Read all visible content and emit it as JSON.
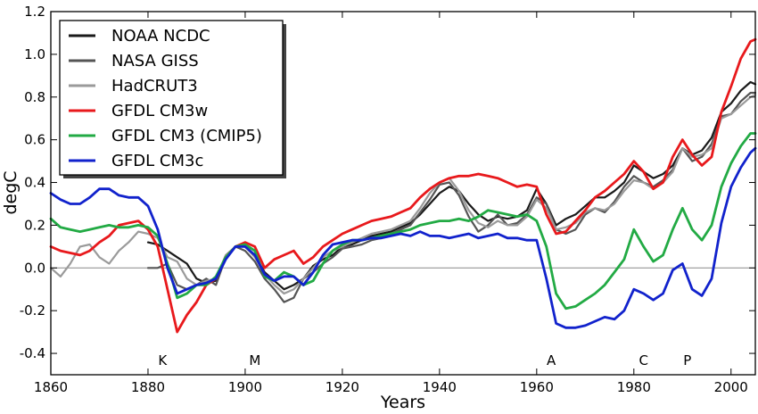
{
  "chart_data": {
    "type": "line",
    "title": "",
    "xlabel": "Years",
    "ylabel": "degC",
    "xlim": [
      1860,
      2005
    ],
    "ylim": [
      -0.5,
      1.2
    ],
    "xticks": [
      1860,
      1880,
      1900,
      1920,
      1940,
      1960,
      1980,
      2000
    ],
    "yticks": [
      -0.4,
      -0.2,
      0.0,
      0.2,
      0.4,
      0.6,
      0.8,
      1.0,
      1.2
    ],
    "ytick_labels": [
      "-0.4",
      "-0.2",
      "0.0",
      "0.2",
      "0.4",
      "0.6",
      "0.8",
      "1.0",
      "1.2"
    ],
    "grid": false,
    "zero_line": true,
    "legend_position": "top-left",
    "event_labels": [
      {
        "text": "K",
        "x": 1883
      },
      {
        "text": "M",
        "x": 1902
      },
      {
        "text": "A",
        "x": 1963
      },
      {
        "text": "C",
        "x": 1982
      },
      {
        "text": "P",
        "x": 1991
      }
    ],
    "series": [
      {
        "name": "NOAA NCDC",
        "color": "#1a1a1a",
        "x": [
          1880,
          1882,
          1884,
          1886,
          1888,
          1890,
          1892,
          1894,
          1896,
          1898,
          1900,
          1902,
          1904,
          1906,
          1908,
          1910,
          1912,
          1914,
          1916,
          1918,
          1920,
          1922,
          1924,
          1926,
          1928,
          1930,
          1932,
          1934,
          1936,
          1938,
          1940,
          1942,
          1944,
          1946,
          1948,
          1950,
          1952,
          1954,
          1956,
          1958,
          1960,
          1962,
          1964,
          1966,
          1968,
          1970,
          1972,
          1974,
          1976,
          1978,
          1980,
          1982,
          1984,
          1986,
          1988,
          1990,
          1992,
          1994,
          1996,
          1998,
          2000,
          2002,
          2004,
          2005
        ],
        "y": [
          0.12,
          0.11,
          0.08,
          0.05,
          0.02,
          -0.05,
          -0.07,
          -0.06,
          0.04,
          0.1,
          0.1,
          0.06,
          -0.02,
          -0.06,
          -0.1,
          -0.08,
          -0.05,
          0.01,
          0.04,
          0.06,
          0.1,
          0.11,
          0.13,
          0.15,
          0.16,
          0.17,
          0.19,
          0.21,
          0.25,
          0.3,
          0.35,
          0.38,
          0.36,
          0.3,
          0.25,
          0.22,
          0.24,
          0.23,
          0.24,
          0.27,
          0.37,
          0.3,
          0.2,
          0.23,
          0.25,
          0.29,
          0.33,
          0.33,
          0.36,
          0.4,
          0.48,
          0.45,
          0.42,
          0.44,
          0.48,
          0.56,
          0.53,
          0.55,
          0.61,
          0.73,
          0.77,
          0.83,
          0.87,
          0.86
        ]
      },
      {
        "name": "NASA GISS",
        "color": "#555555",
        "x": [
          1880,
          1882,
          1884,
          1886,
          1888,
          1890,
          1892,
          1894,
          1896,
          1898,
          1900,
          1902,
          1904,
          1906,
          1908,
          1910,
          1912,
          1914,
          1916,
          1918,
          1920,
          1922,
          1924,
          1926,
          1928,
          1930,
          1932,
          1934,
          1936,
          1938,
          1940,
          1942,
          1944,
          1946,
          1948,
          1950,
          1952,
          1954,
          1956,
          1958,
          1960,
          1962,
          1964,
          1966,
          1968,
          1970,
          1972,
          1974,
          1976,
          1978,
          1980,
          1982,
          1984,
          1986,
          1988,
          1990,
          1992,
          1994,
          1996,
          1998,
          2000,
          2002,
          2004,
          2005
        ],
        "y": [
          0.0,
          0.0,
          0.02,
          -0.08,
          -0.1,
          -0.08,
          -0.05,
          -0.08,
          0.05,
          0.1,
          0.08,
          0.03,
          -0.05,
          -0.1,
          -0.16,
          -0.14,
          -0.05,
          -0.02,
          0.02,
          0.05,
          0.09,
          0.1,
          0.11,
          0.13,
          0.14,
          0.16,
          0.18,
          0.2,
          0.26,
          0.32,
          0.39,
          0.4,
          0.34,
          0.24,
          0.17,
          0.2,
          0.25,
          0.2,
          0.21,
          0.25,
          0.33,
          0.3,
          0.18,
          0.16,
          0.18,
          0.25,
          0.28,
          0.26,
          0.31,
          0.38,
          0.43,
          0.4,
          0.38,
          0.41,
          0.46,
          0.56,
          0.5,
          0.52,
          0.58,
          0.71,
          0.72,
          0.78,
          0.82,
          0.82
        ]
      },
      {
        "name": "HadCRUT3",
        "color": "#9a9a9a",
        "x": [
          1860,
          1862,
          1864,
          1866,
          1868,
          1870,
          1872,
          1874,
          1876,
          1878,
          1880,
          1882,
          1884,
          1886,
          1888,
          1890,
          1892,
          1894,
          1896,
          1898,
          1900,
          1902,
          1904,
          1906,
          1908,
          1910,
          1912,
          1914,
          1916,
          1918,
          1920,
          1922,
          1924,
          1926,
          1928,
          1930,
          1932,
          1934,
          1936,
          1938,
          1940,
          1942,
          1944,
          1946,
          1948,
          1950,
          1952,
          1954,
          1956,
          1958,
          1960,
          1962,
          1964,
          1966,
          1968,
          1970,
          1972,
          1974,
          1976,
          1978,
          1980,
          1982,
          1984,
          1986,
          1988,
          1990,
          1992,
          1994,
          1996,
          1998,
          2000,
          2002,
          2004,
          2005
        ],
        "y": [
          0.0,
          -0.04,
          0.02,
          0.1,
          0.11,
          0.05,
          0.02,
          0.08,
          0.12,
          0.17,
          0.16,
          0.14,
          0.05,
          0.03,
          -0.05,
          -0.08,
          -0.06,
          -0.05,
          0.06,
          0.1,
          0.1,
          0.05,
          -0.03,
          -0.08,
          -0.12,
          -0.1,
          -0.05,
          0.0,
          0.05,
          0.08,
          0.1,
          0.12,
          0.14,
          0.16,
          0.17,
          0.18,
          0.2,
          0.22,
          0.28,
          0.35,
          0.4,
          0.42,
          0.36,
          0.27,
          0.21,
          0.19,
          0.22,
          0.2,
          0.2,
          0.24,
          0.32,
          0.28,
          0.18,
          0.19,
          0.21,
          0.26,
          0.28,
          0.27,
          0.3,
          0.36,
          0.41,
          0.4,
          0.37,
          0.4,
          0.45,
          0.56,
          0.52,
          0.53,
          0.56,
          0.7,
          0.72,
          0.76,
          0.8,
          0.81
        ]
      },
      {
        "name": "GFDL CM3w",
        "color": "#e8191c",
        "x": [
          1860,
          1862,
          1864,
          1866,
          1868,
          1870,
          1872,
          1874,
          1876,
          1878,
          1880,
          1882,
          1884,
          1886,
          1888,
          1890,
          1892,
          1894,
          1896,
          1898,
          1900,
          1902,
          1904,
          1906,
          1908,
          1910,
          1912,
          1914,
          1916,
          1918,
          1920,
          1922,
          1924,
          1926,
          1928,
          1930,
          1932,
          1934,
          1936,
          1938,
          1940,
          1942,
          1944,
          1946,
          1948,
          1950,
          1952,
          1954,
          1956,
          1958,
          1960,
          1962,
          1964,
          1966,
          1968,
          1970,
          1972,
          1974,
          1976,
          1978,
          1980,
          1982,
          1984,
          1986,
          1988,
          1990,
          1992,
          1994,
          1996,
          1998,
          2000,
          2002,
          2004,
          2005
        ],
        "y": [
          0.1,
          0.08,
          0.07,
          0.06,
          0.08,
          0.12,
          0.15,
          0.2,
          0.21,
          0.22,
          0.18,
          0.1,
          -0.1,
          -0.3,
          -0.22,
          -0.16,
          -0.08,
          -0.05,
          0.05,
          0.1,
          0.12,
          0.1,
          0.0,
          0.04,
          0.06,
          0.08,
          0.02,
          0.05,
          0.1,
          0.13,
          0.16,
          0.18,
          0.2,
          0.22,
          0.23,
          0.24,
          0.26,
          0.28,
          0.33,
          0.37,
          0.4,
          0.42,
          0.43,
          0.43,
          0.44,
          0.43,
          0.42,
          0.4,
          0.38,
          0.39,
          0.38,
          0.25,
          0.16,
          0.17,
          0.22,
          0.27,
          0.33,
          0.36,
          0.4,
          0.44,
          0.5,
          0.45,
          0.37,
          0.4,
          0.52,
          0.6,
          0.53,
          0.48,
          0.52,
          0.73,
          0.85,
          0.98,
          1.06,
          1.07
        ]
      },
      {
        "name": "GFDL CM3 (CMIP5)",
        "color": "#22aa44",
        "x": [
          1860,
          1862,
          1864,
          1866,
          1868,
          1870,
          1872,
          1874,
          1876,
          1878,
          1880,
          1882,
          1884,
          1886,
          1888,
          1890,
          1892,
          1894,
          1896,
          1898,
          1900,
          1902,
          1904,
          1906,
          1908,
          1910,
          1912,
          1914,
          1916,
          1918,
          1920,
          1922,
          1924,
          1926,
          1928,
          1930,
          1932,
          1934,
          1936,
          1938,
          1940,
          1942,
          1944,
          1946,
          1948,
          1950,
          1952,
          1954,
          1956,
          1958,
          1960,
          1962,
          1964,
          1966,
          1968,
          1970,
          1972,
          1974,
          1976,
          1978,
          1980,
          1982,
          1984,
          1986,
          1988,
          1990,
          1992,
          1994,
          1996,
          1998,
          2000,
          2002,
          2004,
          2005
        ],
        "y": [
          0.23,
          0.19,
          0.18,
          0.17,
          0.18,
          0.19,
          0.2,
          0.19,
          0.19,
          0.2,
          0.19,
          0.15,
          0.02,
          -0.14,
          -0.12,
          -0.08,
          -0.08,
          -0.04,
          0.05,
          0.1,
          0.11,
          0.08,
          -0.04,
          -0.06,
          -0.02,
          -0.04,
          -0.08,
          -0.06,
          0.02,
          0.08,
          0.11,
          0.13,
          0.13,
          0.14,
          0.15,
          0.16,
          0.17,
          0.18,
          0.2,
          0.21,
          0.22,
          0.22,
          0.23,
          0.22,
          0.24,
          0.27,
          0.26,
          0.25,
          0.24,
          0.25,
          0.22,
          0.1,
          -0.12,
          -0.19,
          -0.18,
          -0.15,
          -0.12,
          -0.08,
          -0.02,
          0.04,
          0.18,
          0.1,
          0.03,
          0.06,
          0.18,
          0.28,
          0.18,
          0.13,
          0.2,
          0.38,
          0.49,
          0.57,
          0.63,
          0.63
        ]
      },
      {
        "name": "GFDL CM3c",
        "color": "#1122cc",
        "x": [
          1860,
          1862,
          1864,
          1866,
          1868,
          1870,
          1872,
          1874,
          1876,
          1878,
          1880,
          1882,
          1884,
          1886,
          1888,
          1890,
          1892,
          1894,
          1896,
          1898,
          1900,
          1902,
          1904,
          1906,
          1908,
          1910,
          1912,
          1914,
          1916,
          1918,
          1920,
          1922,
          1924,
          1926,
          1928,
          1930,
          1932,
          1934,
          1936,
          1938,
          1940,
          1942,
          1944,
          1946,
          1948,
          1950,
          1952,
          1954,
          1956,
          1958,
          1960,
          1962,
          1964,
          1966,
          1968,
          1970,
          1972,
          1974,
          1976,
          1978,
          1980,
          1982,
          1984,
          1986,
          1988,
          1990,
          1992,
          1994,
          1996,
          1998,
          2000,
          2002,
          2004,
          2005
        ],
        "y": [
          0.35,
          0.32,
          0.3,
          0.3,
          0.33,
          0.37,
          0.37,
          0.34,
          0.33,
          0.33,
          0.29,
          0.18,
          0.0,
          -0.12,
          -0.1,
          -0.08,
          -0.07,
          -0.05,
          0.04,
          0.1,
          0.1,
          0.06,
          -0.03,
          -0.06,
          -0.04,
          -0.04,
          -0.08,
          -0.02,
          0.06,
          0.11,
          0.12,
          0.13,
          0.13,
          0.14,
          0.14,
          0.15,
          0.16,
          0.15,
          0.17,
          0.15,
          0.15,
          0.14,
          0.15,
          0.16,
          0.14,
          0.15,
          0.16,
          0.14,
          0.14,
          0.13,
          0.13,
          -0.05,
          -0.26,
          -0.28,
          -0.28,
          -0.27,
          -0.25,
          -0.23,
          -0.24,
          -0.2,
          -0.1,
          -0.12,
          -0.15,
          -0.12,
          -0.01,
          0.02,
          -0.1,
          -0.13,
          -0.05,
          0.21,
          0.38,
          0.47,
          0.54,
          0.56
        ]
      }
    ]
  }
}
